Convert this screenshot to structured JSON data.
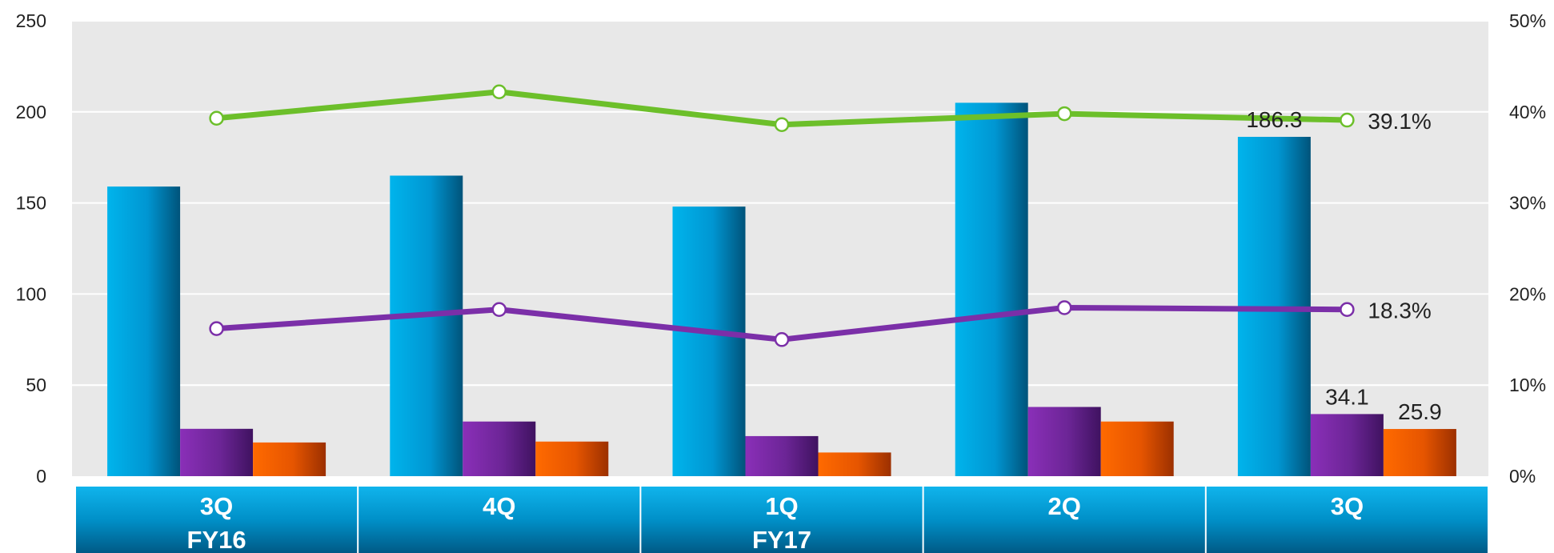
{
  "chart_data": {
    "type": "bar",
    "categories": [
      "3Q",
      "4Q",
      "1Q",
      "2Q",
      "3Q"
    ],
    "fiscal_years": [
      "FY16",
      "",
      "FY17",
      "",
      ""
    ],
    "ylim": [
      0,
      250
    ],
    "yticks": [
      0,
      50,
      100,
      150,
      200,
      250
    ],
    "y2lim": [
      0,
      50
    ],
    "y2ticks": [
      "0%",
      "10%",
      "20%",
      "30%",
      "40%",
      "50%"
    ],
    "y2ticks_values": [
      0,
      10,
      20,
      30,
      40,
      50
    ],
    "series": [
      {
        "values": [
          159,
          165,
          148,
          205,
          186.3
        ],
        "color": "#00a3e0",
        "labels": [
          "",
          "",
          "",
          "",
          "186.3"
        ]
      },
      {
        "values": [
          26,
          30,
          22,
          38,
          34.1
        ],
        "color": "#7b2fa8",
        "labels": [
          "",
          "",
          "",
          "",
          "34.1"
        ]
      },
      {
        "values": [
          18.5,
          19,
          13,
          30,
          25.9
        ],
        "color": "#f06000",
        "labels": [
          "",
          "",
          "",
          "",
          "25.9"
        ]
      }
    ],
    "lines": [
      {
        "axis": "right",
        "values": [
          39.3,
          42.2,
          38.6,
          39.8,
          39.1
        ],
        "color": "#6cbf2a",
        "labels": [
          "",
          "",
          "",
          "",
          "39.1%"
        ]
      },
      {
        "axis": "right",
        "values": [
          16.2,
          18.3,
          15.0,
          18.5,
          18.3
        ],
        "color": "#7b2fa8",
        "labels": [
          "",
          "",
          "",
          "",
          "18.3%"
        ]
      }
    ],
    "grid": true,
    "legend": "none"
  }
}
